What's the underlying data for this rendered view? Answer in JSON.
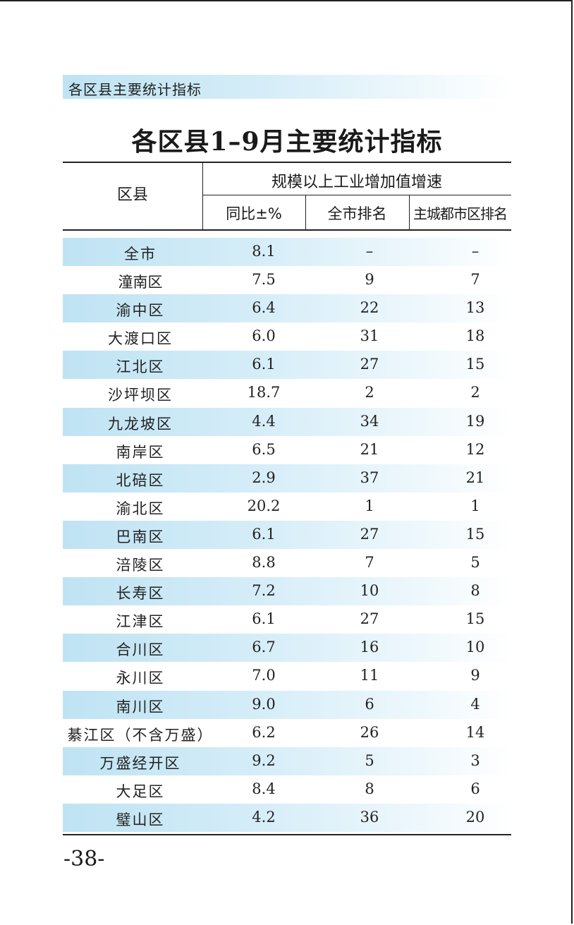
{
  "header": {
    "banner_text": "各区县主要统计指标"
  },
  "table": {
    "title": "各区县1–9月主要统计指标",
    "region_header": "区县",
    "group_header": "规模以上工业增加值增速",
    "columns": [
      "同比±%",
      "全市排名",
      "主城都市区排名"
    ],
    "rows": [
      {
        "name": "全市",
        "yoy": "8.1",
        "city_rank": "–",
        "main_rank": "–",
        "shaded": true
      },
      {
        "name": "潼南区",
        "yoy": "7.5",
        "city_rank": "9",
        "main_rank": "7",
        "shaded": false
      },
      {
        "name": "渝中区",
        "yoy": "6.4",
        "city_rank": "22",
        "main_rank": "13",
        "shaded": true
      },
      {
        "name": "大渡口区",
        "yoy": "6.0",
        "city_rank": "31",
        "main_rank": "18",
        "shaded": false
      },
      {
        "name": "江北区",
        "yoy": "6.1",
        "city_rank": "27",
        "main_rank": "15",
        "shaded": true
      },
      {
        "name": "沙坪坝区",
        "yoy": "18.7",
        "city_rank": "2",
        "main_rank": "2",
        "shaded": false
      },
      {
        "name": "九龙坡区",
        "yoy": "4.4",
        "city_rank": "34",
        "main_rank": "19",
        "shaded": true
      },
      {
        "name": "南岸区",
        "yoy": "6.5",
        "city_rank": "21",
        "main_rank": "12",
        "shaded": false
      },
      {
        "name": "北碚区",
        "yoy": "2.9",
        "city_rank": "37",
        "main_rank": "21",
        "shaded": true
      },
      {
        "name": "渝北区",
        "yoy": "20.2",
        "city_rank": "1",
        "main_rank": "1",
        "shaded": false
      },
      {
        "name": "巴南区",
        "yoy": "6.1",
        "city_rank": "27",
        "main_rank": "15",
        "shaded": true
      },
      {
        "name": "涪陵区",
        "yoy": "8.8",
        "city_rank": "7",
        "main_rank": "5",
        "shaded": false
      },
      {
        "name": "长寿区",
        "yoy": "7.2",
        "city_rank": "10",
        "main_rank": "8",
        "shaded": true
      },
      {
        "name": "江津区",
        "yoy": "6.1",
        "city_rank": "27",
        "main_rank": "15",
        "shaded": false
      },
      {
        "name": "合川区",
        "yoy": "6.7",
        "city_rank": "16",
        "main_rank": "10",
        "shaded": true
      },
      {
        "name": "永川区",
        "yoy": "7.0",
        "city_rank": "11",
        "main_rank": "9",
        "shaded": false
      },
      {
        "name": "南川区",
        "yoy": "9.0",
        "city_rank": "6",
        "main_rank": "4",
        "shaded": true
      },
      {
        "name": "綦江区（不含万盛）",
        "yoy": "6.2",
        "city_rank": "26",
        "main_rank": "14",
        "shaded": false
      },
      {
        "name": "万盛经开区",
        "yoy": "9.2",
        "city_rank": "5",
        "main_rank": "3",
        "shaded": true
      },
      {
        "name": "大足区",
        "yoy": "8.4",
        "city_rank": "8",
        "main_rank": "6",
        "shaded": false
      },
      {
        "name": "璧山区",
        "yoy": "4.2",
        "city_rank": "36",
        "main_rank": "20",
        "shaded": true
      }
    ]
  },
  "footer": {
    "page_number": "-38-"
  }
}
